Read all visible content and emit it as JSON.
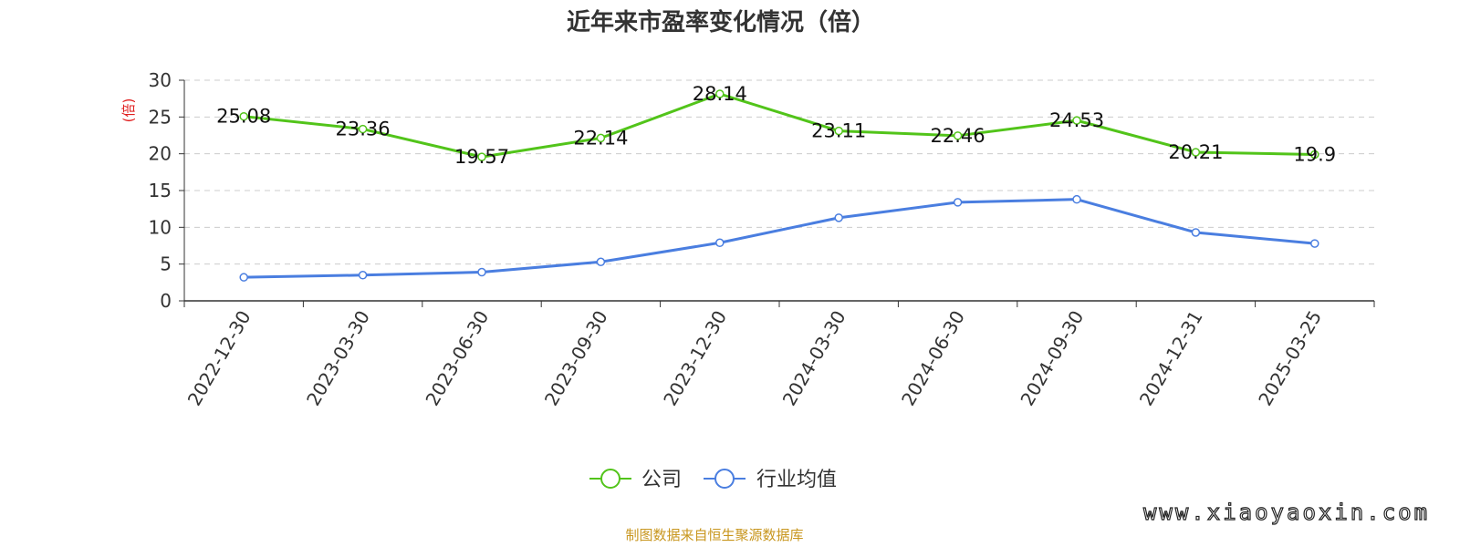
{
  "chart_data": {
    "type": "line",
    "title": "近年来市盈率变化情况（倍）",
    "ylabel": "(倍)",
    "xlabel": "",
    "ylim": [
      0,
      30
    ],
    "yticks": [
      0,
      5,
      10,
      15,
      20,
      25,
      30
    ],
    "grid": true,
    "legend_position": "bottom-center",
    "categories": [
      "2022-12-30",
      "2023-03-30",
      "2023-06-30",
      "2023-09-30",
      "2023-12-30",
      "2024-03-30",
      "2024-06-30",
      "2024-09-30",
      "2024-12-31",
      "2025-03-25"
    ],
    "series": [
      {
        "name": "公司",
        "color": "#52c41a",
        "values": [
          25.08,
          23.36,
          19.57,
          22.14,
          28.14,
          23.11,
          22.46,
          24.53,
          20.21,
          19.9
        ],
        "value_labels": [
          "25.08",
          "23.36",
          "19.57",
          "22.14",
          "28.14",
          "23.11",
          "22.46",
          "24.53",
          "20.21",
          "19.9"
        ]
      },
      {
        "name": "行业均值",
        "color": "#4a7ee0",
        "values": [
          3.2,
          3.5,
          3.9,
          5.3,
          7.9,
          11.3,
          13.4,
          13.8,
          9.3,
          7.8
        ]
      }
    ]
  },
  "source_text": "制图数据来自恒生聚源数据库",
  "watermark_text": "www.xiaoyaoxin.com",
  "colors": {
    "axis": "#333333",
    "grid": "#cccccc",
    "ylabel": "#e02020",
    "source": "#c8961e"
  }
}
